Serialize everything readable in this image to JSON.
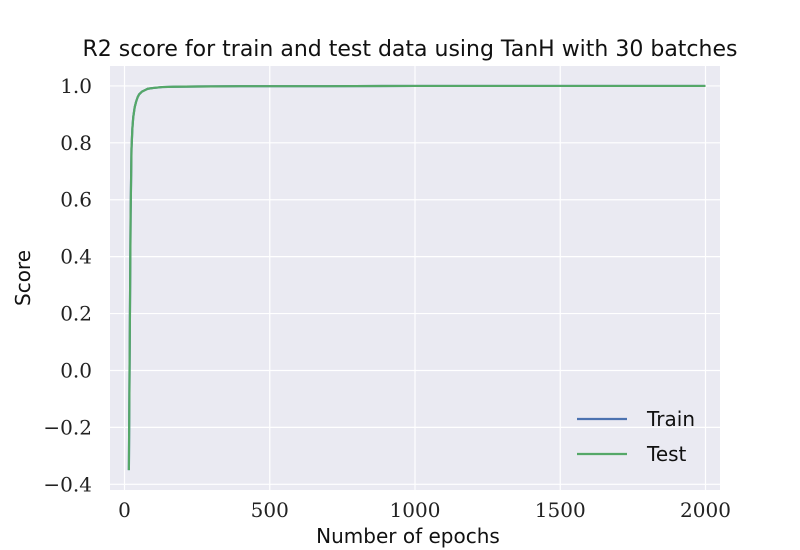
{
  "chart_data": {
    "type": "line",
    "title": "R2 score for train and test data using TanH with 30 batches",
    "xlabel": "Number of epochs",
    "ylabel": "Score",
    "xlim": [
      -50,
      2050
    ],
    "ylim": [
      -0.42,
      1.07
    ],
    "xticks": [
      0,
      500,
      1000,
      1500,
      2000
    ],
    "xtick_labels": [
      "0",
      "500",
      "1000",
      "1500",
      "2000"
    ],
    "yticks": [
      -0.4,
      -0.2,
      0.0,
      0.2,
      0.4,
      0.6,
      0.8,
      1.0
    ],
    "ytick_labels": [
      "−0.4",
      "−0.2",
      "0.0",
      "0.2",
      "0.4",
      "0.6",
      "0.8",
      "1.0"
    ],
    "grid": true,
    "legend_position": "lower-right",
    "background_color": "#eaeaf2",
    "series": [
      {
        "name": "Train",
        "color": "#4c72b0",
        "x": [
          15,
          18,
          21,
          24,
          27,
          30,
          35,
          40,
          45,
          50,
          60,
          70,
          80,
          100,
          130,
          170,
          250,
          400,
          700,
          1000,
          1500,
          2000
        ],
        "y": [
          -0.35,
          0.1,
          0.55,
          0.78,
          0.85,
          0.89,
          0.925,
          0.945,
          0.96,
          0.97,
          0.98,
          0.985,
          0.99,
          0.993,
          0.996,
          0.997,
          0.998,
          0.999,
          0.999,
          1.0,
          1.0,
          1.0
        ]
      },
      {
        "name": "Test",
        "color": "#55a868",
        "x": [
          15,
          18,
          21,
          24,
          27,
          30,
          35,
          40,
          45,
          50,
          60,
          70,
          80,
          100,
          130,
          170,
          250,
          400,
          700,
          1000,
          1500,
          2000
        ],
        "y": [
          -0.35,
          0.1,
          0.55,
          0.78,
          0.85,
          0.89,
          0.925,
          0.945,
          0.96,
          0.97,
          0.98,
          0.985,
          0.99,
          0.993,
          0.996,
          0.997,
          0.998,
          0.999,
          0.999,
          1.0,
          1.0,
          1.0
        ]
      }
    ]
  }
}
